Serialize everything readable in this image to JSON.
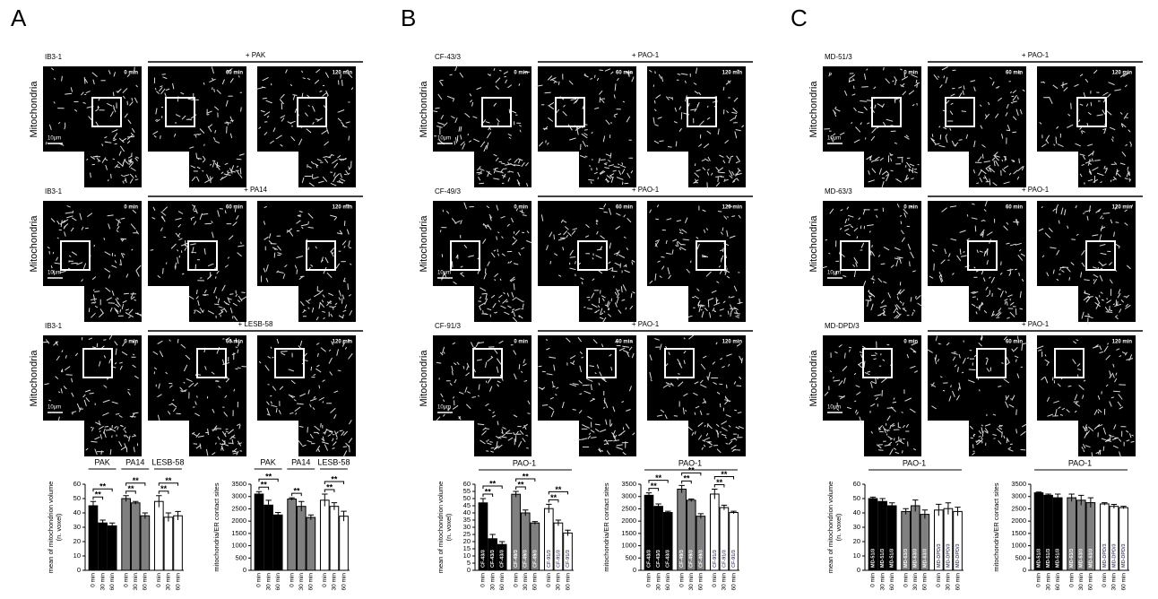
{
  "panels": [
    {
      "label": "A",
      "ylabel": "Mitochondria",
      "scale": "10µm",
      "rows": [
        {
          "cell": "IB3-1",
          "treatment": "+ PAK",
          "times": [
            "0 min",
            "60 min",
            "120 min"
          ]
        },
        {
          "cell": "IB3-1",
          "treatment": "+ PA14",
          "times": [
            "0 min",
            "60 min",
            "120 min"
          ]
        },
        {
          "cell": "IB3-1",
          "treatment": "+ LESB-58",
          "times": [
            "0 min",
            "60 min",
            "120 min"
          ]
        }
      ]
    },
    {
      "label": "B",
      "ylabel": "Mitochondria",
      "scale": "10µm",
      "rows": [
        {
          "cell": "CF-43/3",
          "treatment": "+ PAO-1",
          "times": [
            "0 min",
            "60 min",
            "120 min"
          ]
        },
        {
          "cell": "CF-49/3",
          "treatment": "+ PAO-1",
          "times": [
            "0 min",
            "60 min",
            "120 min"
          ]
        },
        {
          "cell": "CF-91/3",
          "treatment": "+ PAO-1",
          "times": [
            "0 min",
            "60 min",
            "120 min"
          ]
        }
      ]
    },
    {
      "label": "C",
      "ylabel": "Mitochondria",
      "scale": "10µm",
      "rows": [
        {
          "cell": "MD-51/3",
          "treatment": "+ PAO-1",
          "times": [
            "0 min",
            "60 min",
            "120 min"
          ]
        },
        {
          "cell": "MD-63/3",
          "treatment": "+ PAO-1",
          "times": [
            "0 min",
            "60 min",
            "120 min"
          ]
        },
        {
          "cell": "MD-DPD/3",
          "treatment": "+ PAO-1",
          "times": [
            "0 min",
            "60 min",
            "120 min"
          ]
        }
      ]
    }
  ],
  "chart_data": [
    {
      "type": "bar",
      "ylabel": [
        "mean of mitochondrion volume",
        "(n. voxel)"
      ],
      "ylim": [
        0,
        60
      ],
      "yticks": [
        0,
        10,
        20,
        30,
        40,
        50,
        60
      ],
      "categories": [
        "0 min",
        "30 min",
        "60 min"
      ],
      "series": [
        {
          "name": "PAK",
          "color": "#000000",
          "values": [
            45,
            33,
            31
          ],
          "errors": [
            3,
            2,
            2
          ],
          "significance": [
            "**",
            "**"
          ]
        },
        {
          "name": "PA14",
          "color": "#808080",
          "values": [
            50,
            47,
            38
          ],
          "errors": [
            2,
            1,
            2
          ],
          "significance": [
            "**",
            "**"
          ]
        },
        {
          "name": "LESB-58",
          "color": "#ffffff",
          "values": [
            48,
            37,
            38
          ],
          "errors": [
            4,
            3,
            3
          ],
          "significance": [
            "**",
            "**"
          ]
        }
      ]
    },
    {
      "type": "bar",
      "ylabel": [
        "mitochondria/ER contact sites"
      ],
      "ylim": [
        0,
        3500
      ],
      "yticks": [
        0,
        500,
        1000,
        1500,
        2000,
        2500,
        3000,
        3500
      ],
      "categories": [
        "0 min",
        "30 min",
        "60 min"
      ],
      "series": [
        {
          "name": "PAK",
          "color": "#000000",
          "values": [
            3100,
            2650,
            2250
          ],
          "errors": [
            100,
            200,
            100
          ],
          "significance": [
            "**",
            "**"
          ]
        },
        {
          "name": "PA14",
          "color": "#808080",
          "values": [
            2900,
            2600,
            2150
          ],
          "errors": [
            50,
            200,
            100
          ],
          "significance": [
            "**"
          ]
        },
        {
          "name": "LESB-58",
          "color": "#ffffff",
          "values": [
            2850,
            2600,
            2200
          ],
          "errors": [
            250,
            150,
            200
          ],
          "significance": [
            "**",
            "**"
          ]
        }
      ]
    },
    {
      "type": "bar",
      "header": "PAO-1",
      "ylabel": [
        "mean of mitochondrion volume",
        "(n. voxel)"
      ],
      "ylim": [
        0,
        60
      ],
      "yticks": [
        0,
        5,
        10,
        15,
        20,
        25,
        30,
        35,
        40,
        45,
        50,
        55,
        60
      ],
      "categories": [
        "0 min",
        "30 min",
        "60 min"
      ],
      "series": [
        {
          "name": "CF-43/3",
          "color": "#000000",
          "values": [
            47,
            22,
            18
          ],
          "errors": [
            3,
            3,
            2
          ],
          "significance": [
            "**",
            "**"
          ]
        },
        {
          "name": "CF-49/3",
          "color": "#808080",
          "values": [
            53,
            40,
            33
          ],
          "errors": [
            2,
            2,
            1
          ],
          "significance": [
            "**",
            "**"
          ]
        },
        {
          "name": "CF-91/3",
          "color": "#ffffff",
          "values": [
            43,
            33,
            26
          ],
          "errors": [
            3,
            2,
            2
          ],
          "significance": [
            "**",
            "**"
          ]
        }
      ]
    },
    {
      "type": "bar",
      "header": "PAO-1",
      "ylabel": [
        "mitochondria/ER contact sites"
      ],
      "ylim": [
        0,
        3500
      ],
      "yticks": [
        0,
        500,
        1000,
        1500,
        2000,
        2500,
        3000,
        3500
      ],
      "categories": [
        "0 min",
        "30 min",
        "60 min"
      ],
      "series": [
        {
          "name": "CF-43/3",
          "color": "#000000",
          "values": [
            3050,
            2600,
            2350
          ],
          "errors": [
            100,
            100,
            50
          ],
          "significance": [
            "**",
            "**"
          ]
        },
        {
          "name": "CF-49/3",
          "color": "#808080",
          "values": [
            3300,
            2850,
            2200
          ],
          "errors": [
            150,
            50,
            100
          ],
          "significance": [
            "**",
            "**"
          ]
        },
        {
          "name": "CF-91/3",
          "color": "#ffffff",
          "values": [
            3100,
            2550,
            2350
          ],
          "errors": [
            200,
            100,
            50
          ],
          "significance": [
            "**",
            "**"
          ]
        }
      ]
    },
    {
      "type": "bar",
      "header": "PAO-1",
      "ylabel": [
        "mean of mitochondrion volume",
        "(n. voxel)"
      ],
      "ylim": [
        0,
        60
      ],
      "yticks": [
        0,
        10,
        20,
        30,
        40,
        50,
        60
      ],
      "categories": [
        "0 min",
        "30 min",
        "60 min"
      ],
      "series": [
        {
          "name": "MD-51/3",
          "color": "#000000",
          "values": [
            50,
            48,
            45
          ],
          "errors": [
            1,
            2,
            2
          ],
          "significance": []
        },
        {
          "name": "MD-63/3",
          "color": "#808080",
          "values": [
            41,
            45,
            39
          ],
          "errors": [
            2,
            4,
            3
          ],
          "significance": []
        },
        {
          "name": "MD-DPD/3",
          "color": "#ffffff",
          "values": [
            42,
            43,
            41
          ],
          "errors": [
            4,
            4,
            3
          ],
          "significance": []
        }
      ]
    },
    {
      "type": "bar",
      "header": "PAO-1",
      "ylabel": [
        "mitochondria/ER contact sites"
      ],
      "ylim": [
        0,
        3500
      ],
      "yticks": [
        0,
        500,
        1000,
        1500,
        2000,
        2500,
        3000,
        3500
      ],
      "categories": [
        "0 min",
        "30 min",
        "60 min"
      ],
      "series": [
        {
          "name": "MD-51/3",
          "color": "#000000",
          "values": [
            3150,
            3050,
            2950
          ],
          "errors": [
            30,
            50,
            150
          ],
          "significance": []
        },
        {
          "name": "MD-63/3",
          "color": "#808080",
          "values": [
            2950,
            2850,
            2750
          ],
          "errors": [
            150,
            200,
            200
          ],
          "significance": []
        },
        {
          "name": "MD-DPD/3",
          "color": "#ffffff",
          "values": [
            2700,
            2600,
            2550
          ],
          "errors": [
            50,
            80,
            50
          ],
          "significance": []
        }
      ]
    }
  ]
}
